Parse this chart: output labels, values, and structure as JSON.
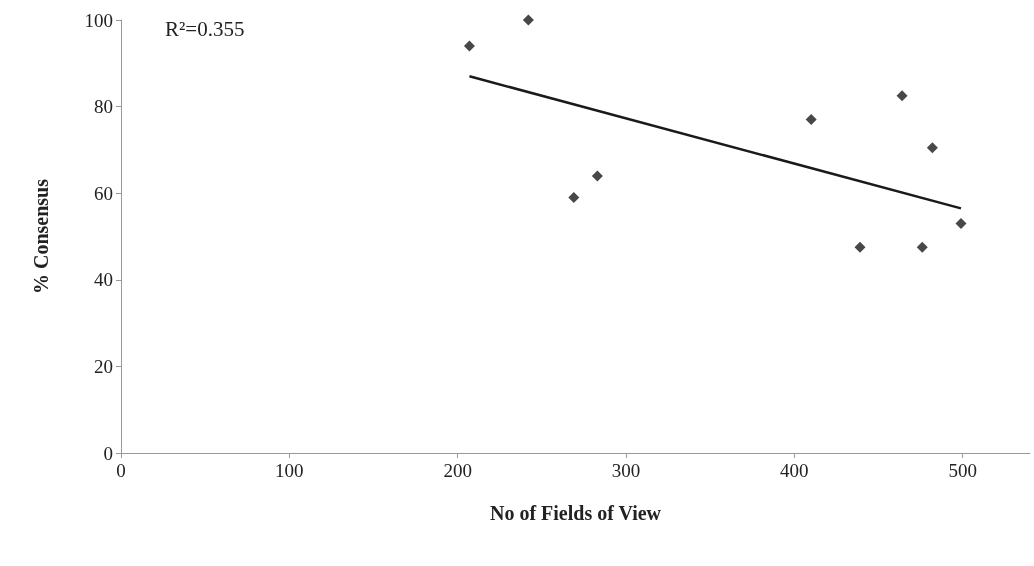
{
  "chart_data": {
    "type": "scatter",
    "xlabel": "No of Fields of View",
    "ylabel": "% Consensus",
    "annotations": [
      "R²=0.355"
    ],
    "xlim": [
      0,
      540
    ],
    "xticks": [
      0,
      100,
      200,
      300,
      400,
      500
    ],
    "ylim": [
      0,
      100
    ],
    "yticks": [
      0,
      20,
      40,
      60,
      80,
      100
    ],
    "grid": false,
    "marker": "diamond",
    "series": [
      {
        "color": "#1a1a1a",
        "x": [
          207,
          242,
          269,
          283,
          410,
          439,
          464,
          476,
          482,
          499
        ],
        "values": [
          94,
          100,
          59,
          64,
          77,
          47.5,
          82.5,
          47.5,
          70.5,
          53
        ]
      },
      {
        "type": "line",
        "color": "#1a1a1a",
        "line_style": "solid",
        "marker": "none",
        "x": [
          207,
          499
        ],
        "values": [
          87,
          56.5
        ]
      }
    ]
  }
}
